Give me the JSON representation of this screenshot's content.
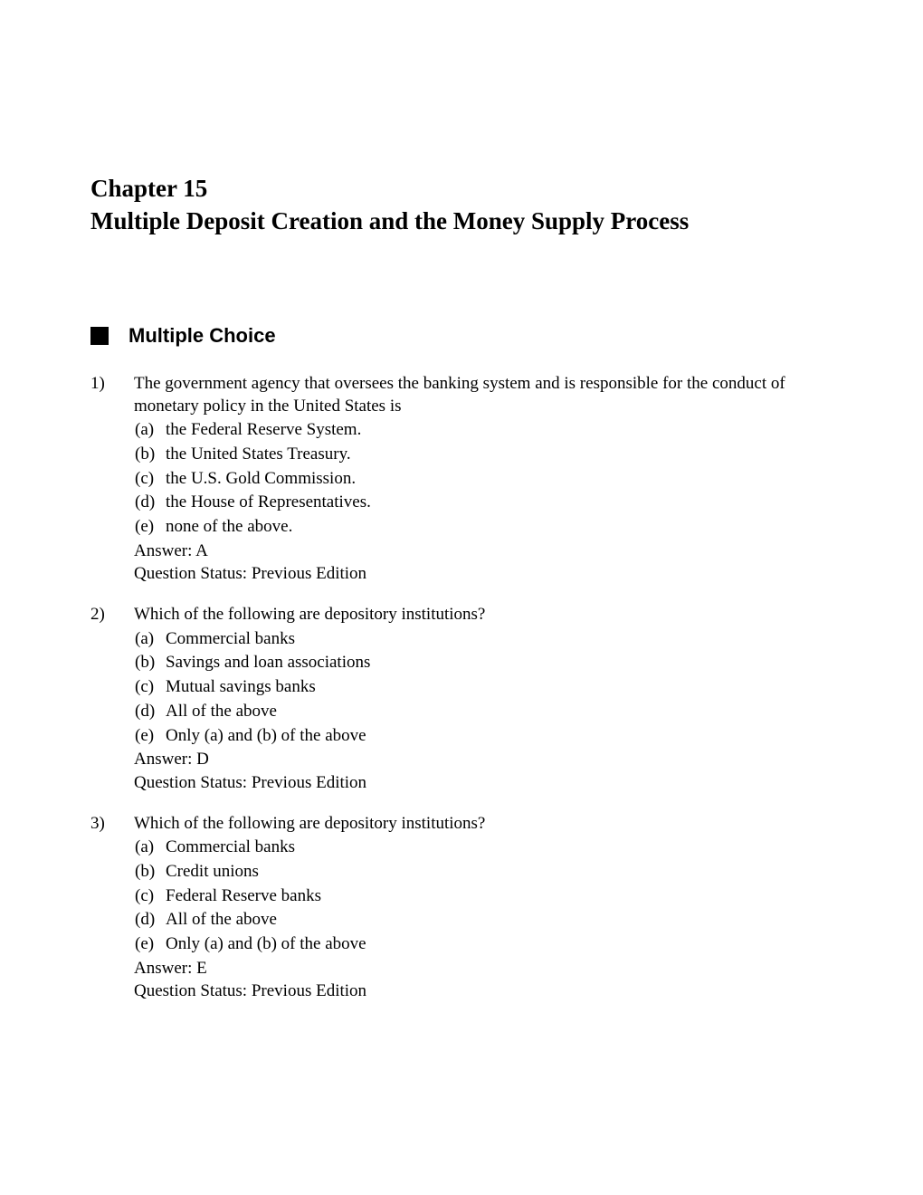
{
  "chapter": {
    "number": "Chapter 15",
    "title": "Multiple Deposit Creation and the Money Supply Process"
  },
  "section": {
    "title": "Multiple Choice"
  },
  "questions": [
    {
      "number": "1)",
      "stem": "The government agency that oversees the banking system and is responsible for the conduct of monetary policy in the United States is",
      "options": [
        {
          "letter": "(a)",
          "text": "the Federal Reserve System."
        },
        {
          "letter": "(b)",
          "text": "the United States Treasury."
        },
        {
          "letter": "(c)",
          "text": "the U.S. Gold Commission."
        },
        {
          "letter": "(d)",
          "text": "the House of Representatives."
        },
        {
          "letter": "(e)",
          "text": "none of the above."
        }
      ],
      "answer": "Answer:  A",
      "status": "Question Status: Previous Edition"
    },
    {
      "number": "2)",
      "stem": "Which of the following are depository institutions?",
      "options": [
        {
          "letter": "(a)",
          "text": "Commercial banks"
        },
        {
          "letter": "(b)",
          "text": "Savings and loan associations"
        },
        {
          "letter": "(c)",
          "text": "Mutual savings banks"
        },
        {
          "letter": "(d)",
          "text": "All of the above"
        },
        {
          "letter": "(e)",
          "text": "Only (a) and (b) of the above"
        }
      ],
      "answer": "Answer:  D",
      "status": "Question Status: Previous Edition"
    },
    {
      "number": "3)",
      "stem": "Which of the following are depository institutions?",
      "options": [
        {
          "letter": "(a)",
          "text": "Commercial banks"
        },
        {
          "letter": "(b)",
          "text": "Credit unions"
        },
        {
          "letter": "(c)",
          "text": "Federal Reserve banks"
        },
        {
          "letter": "(d)",
          "text": "All of the above"
        },
        {
          "letter": "(e)",
          "text": "Only (a) and (b) of the above"
        }
      ],
      "answer": "Answer:  E",
      "status": "Question Status: Previous Edition"
    }
  ]
}
